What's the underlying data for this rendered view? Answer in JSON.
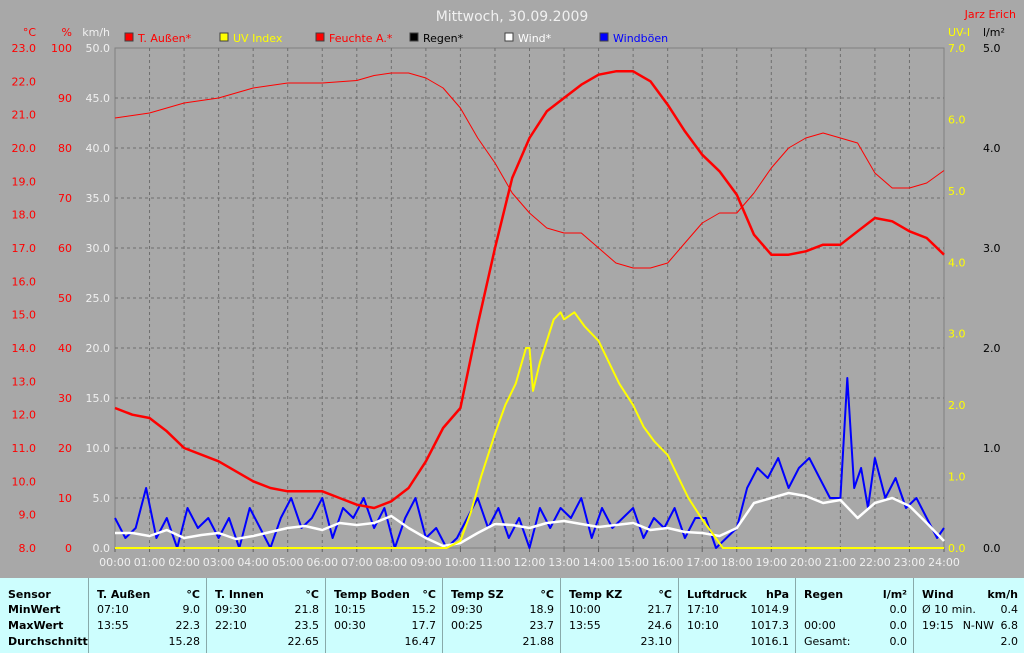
{
  "chart_data": {
    "type": "line",
    "title": "Mittwoch, 30.09.2009",
    "corner_label": "Jarz Erich",
    "x_ticks": [
      "00:00",
      "01:00",
      "02:00",
      "03:00",
      "04:00",
      "05:00",
      "06:00",
      "07:00",
      "08:00",
      "09:00",
      "10:00",
      "11:00",
      "12:00",
      "13:00",
      "14:00",
      "15:00",
      "16:00",
      "17:00",
      "18:00",
      "19:00",
      "20:00",
      "21:00",
      "22:00",
      "23:00",
      "24:00"
    ],
    "xlim": [
      0,
      24
    ],
    "axes": {
      "temp": {
        "unit": "°C",
        "range": [
          8.0,
          23.0
        ],
        "ticks": [
          "23.0",
          "22.0",
          "21.0",
          "20.0",
          "19.0",
          "18.0",
          "17.0",
          "16.0",
          "15.0",
          "14.0",
          "13.0",
          "12.0",
          "11.0",
          "10.0",
          "9.0",
          "8.0"
        ]
      },
      "hum": {
        "unit": "%",
        "range": [
          0,
          100
        ],
        "ticks": [
          "100",
          "90",
          "80",
          "70",
          "60",
          "50",
          "40",
          "30",
          "20",
          "10",
          "0"
        ]
      },
      "wind": {
        "unit": "km/h",
        "range": [
          0,
          50
        ],
        "ticks": [
          "50.0",
          "45.0",
          "40.0",
          "35.0",
          "30.0",
          "25.0",
          "20.0",
          "15.0",
          "10.0",
          "5.0",
          "0.0"
        ]
      },
      "uv": {
        "unit": "UV-I",
        "range": [
          0,
          7
        ],
        "ticks": [
          "7.0",
          "6.0",
          "5.0",
          "4.0",
          "3.0",
          "2.0",
          "1.0",
          "0.0"
        ]
      },
      "rain": {
        "unit": "l/m²",
        "range": [
          0,
          5
        ],
        "ticks": [
          "5.0",
          "4.0",
          "3.0",
          "2.0",
          "1.0",
          "0.0"
        ]
      }
    },
    "legend": [
      {
        "name": "T. Außen*",
        "color": "#ff0000"
      },
      {
        "name": "UV Index",
        "color": "#ffff00"
      },
      {
        "name": "Feuchte A.*",
        "color": "#ff0000"
      },
      {
        "name": "Regen*",
        "color": "#000000"
      },
      {
        "name": "Wind*",
        "color": "#ffffff"
      },
      {
        "name": "Windböen",
        "color": "#0000ff"
      }
    ],
    "series": [
      {
        "name": "T. Außen*",
        "axis": "temp",
        "color": "#ff0000",
        "x": [
          0,
          0.5,
          1,
          1.5,
          2,
          3,
          4,
          4.5,
          5,
          6,
          6.5,
          7,
          7.5,
          8,
          8.5,
          9,
          9.5,
          10,
          10.5,
          11,
          11.5,
          12,
          12.5,
          13,
          13.5,
          14,
          14.5,
          15,
          15.5,
          16,
          16.5,
          17,
          17.5,
          18,
          18.5,
          19,
          19.5,
          20,
          20.5,
          21,
          21.5,
          22,
          22.5,
          23,
          23.5,
          24
        ],
        "y": [
          12.2,
          12.0,
          11.9,
          11.5,
          11.0,
          10.6,
          10.0,
          9.8,
          9.7,
          9.7,
          9.5,
          9.3,
          9.2,
          9.4,
          9.8,
          10.6,
          11.6,
          12.2,
          14.7,
          17.0,
          19.1,
          20.3,
          21.1,
          21.5,
          21.9,
          22.2,
          22.3,
          22.3,
          22.0,
          21.3,
          20.5,
          19.8,
          19.3,
          18.6,
          17.4,
          16.8,
          16.8,
          16.9,
          17.1,
          17.1,
          17.5,
          17.9,
          17.8,
          17.5,
          17.3,
          16.8
        ]
      },
      {
        "name": "Feuchte A.*",
        "axis": "hum",
        "color": "#ff0000",
        "x": [
          0,
          0.5,
          1,
          1.5,
          2,
          3,
          4,
          5,
          6,
          7,
          7.5,
          8,
          8.5,
          9,
          9.5,
          10,
          10.5,
          11,
          11.5,
          12,
          12.5,
          13,
          13.5,
          14,
          14.5,
          15,
          15.5,
          16,
          16.5,
          17,
          17.5,
          18,
          18.5,
          19,
          19.5,
          20,
          20.5,
          21,
          21.5,
          22,
          22.5,
          23,
          23.5,
          24
        ],
        "y": [
          86,
          86.5,
          87,
          88,
          89,
          90,
          92,
          93,
          93,
          93.5,
          94.5,
          95,
          95,
          94,
          92,
          88,
          82,
          77,
          71,
          67,
          64,
          63,
          63,
          60,
          57,
          56,
          56,
          57,
          61,
          65,
          67,
          67,
          71,
          76,
          80,
          82,
          83,
          82,
          81,
          75,
          72,
          72,
          73,
          75.5
        ]
      },
      {
        "name": "UV Index",
        "axis": "uv",
        "color": "#ffff00",
        "x": [
          0,
          9.6,
          10.0,
          10.3,
          10.6,
          11.0,
          11.3,
          11.6,
          11.9,
          12.0,
          12.1,
          12.3,
          12.5,
          12.7,
          12.9,
          13.0,
          13.3,
          13.6,
          14.0,
          14.3,
          14.6,
          15.0,
          15.3,
          15.6,
          16.0,
          16.3,
          16.6,
          17.0,
          17.3,
          17.6,
          24
        ],
        "y": [
          0,
          0,
          0.1,
          0.5,
          1.0,
          1.6,
          2.0,
          2.3,
          2.8,
          2.8,
          2.2,
          2.6,
          2.9,
          3.2,
          3.3,
          3.2,
          3.3,
          3.1,
          2.9,
          2.6,
          2.3,
          2.0,
          1.7,
          1.5,
          1.3,
          1.0,
          0.7,
          0.4,
          0.2,
          0,
          0
        ]
      },
      {
        "name": "Wind*",
        "axis": "wind",
        "color": "#ffffff",
        "x": [
          0,
          0.5,
          1,
          1.5,
          2,
          2.5,
          3,
          3.5,
          4,
          4.5,
          5,
          5.5,
          6,
          6.5,
          7,
          7.5,
          8,
          8.5,
          9,
          9.5,
          10,
          10.5,
          11,
          11.5,
          12,
          12.5,
          13,
          13.5,
          14,
          14.5,
          15,
          15.5,
          16,
          16.5,
          17,
          17.5,
          18,
          18.5,
          19,
          19.5,
          20,
          20.5,
          21,
          21.5,
          22,
          22.5,
          23,
          23.5,
          24
        ],
        "y": [
          1.5,
          1.5,
          1.2,
          1.8,
          1.0,
          1.3,
          1.5,
          0.9,
          1.2,
          1.6,
          2.0,
          2.2,
          1.8,
          2.5,
          2.3,
          2.5,
          3.2,
          2.0,
          1.0,
          0.2,
          0.5,
          1.5,
          2.4,
          2.3,
          2.0,
          2.5,
          2.7,
          2.4,
          2.1,
          2.3,
          2.5,
          1.8,
          2.0,
          1.6,
          1.5,
          1.2,
          2.0,
          4.5,
          5.0,
          5.5,
          5.2,
          4.5,
          4.8,
          3.0,
          4.5,
          5.0,
          4.2,
          2.5,
          0.7
        ]
      },
      {
        "name": "Windböen",
        "axis": "wind",
        "color": "#0000ff",
        "x": [
          0,
          0.3,
          0.6,
          0.9,
          1.2,
          1.5,
          1.8,
          2.1,
          2.4,
          2.7,
          3.0,
          3.3,
          3.6,
          3.9,
          4.2,
          4.5,
          4.8,
          5.1,
          5.4,
          5.7,
          6.0,
          6.3,
          6.6,
          6.9,
          7.2,
          7.5,
          7.8,
          8.1,
          8.4,
          8.7,
          9.0,
          9.3,
          9.6,
          9.9,
          10.2,
          10.5,
          10.8,
          11.1,
          11.4,
          11.7,
          12.0,
          12.3,
          12.6,
          12.9,
          13.2,
          13.5,
          13.8,
          14.1,
          14.4,
          14.7,
          15.0,
          15.3,
          15.6,
          15.9,
          16.2,
          16.5,
          16.8,
          17.1,
          17.4,
          17.7,
          18.0,
          18.3,
          18.6,
          18.9,
          19.2,
          19.5,
          19.8,
          20.1,
          20.4,
          20.7,
          21.0,
          21.2,
          21.4,
          21.6,
          21.8,
          22.0,
          22.3,
          22.6,
          22.9,
          23.2,
          23.5,
          23.8,
          24
        ],
        "y": [
          3,
          1,
          2,
          6,
          1,
          3,
          0,
          4,
          2,
          3,
          1,
          3,
          0,
          4,
          2,
          0,
          3,
          5,
          2,
          3,
          5,
          1,
          4,
          3,
          5,
          2,
          4,
          0,
          3,
          5,
          1,
          2,
          0,
          1,
          3,
          5,
          2,
          4,
          1,
          3,
          0,
          4,
          2,
          4,
          3,
          5,
          1,
          4,
          2,
          3,
          4,
          1,
          3,
          2,
          4,
          1,
          3,
          3,
          0,
          1,
          2,
          6,
          8,
          7,
          9,
          6,
          8,
          9,
          7,
          5,
          5,
          17,
          6,
          8,
          4,
          9,
          5,
          7,
          4,
          5,
          3,
          1,
          2
        ]
      }
    ]
  },
  "stats": {
    "columns": [
      {
        "header": "Sensor",
        "unit": "",
        "rows": [
          {
            "time": "MinWert",
            "value": ""
          },
          {
            "time": "MaxWert",
            "value": ""
          },
          {
            "time": "Durchschnitt",
            "value": ""
          }
        ]
      },
      {
        "header": "T. Außen",
        "unit": "°C",
        "rows": [
          {
            "time": "07:10",
            "value": "9.0"
          },
          {
            "time": "13:55",
            "value": "22.3"
          },
          {
            "time": "",
            "value": "15.28"
          }
        ]
      },
      {
        "header": "T. Innen",
        "unit": "°C",
        "rows": [
          {
            "time": "09:30",
            "value": "21.8"
          },
          {
            "time": "22:10",
            "value": "23.5"
          },
          {
            "time": "",
            "value": "22.65"
          }
        ]
      },
      {
        "header": "Temp Boden",
        "unit": "°C",
        "rows": [
          {
            "time": "10:15",
            "value": "15.2"
          },
          {
            "time": "00:30",
            "value": "17.7"
          },
          {
            "time": "",
            "value": "16.47"
          }
        ]
      },
      {
        "header": "Temp SZ",
        "unit": "°C",
        "rows": [
          {
            "time": "09:30",
            "value": "18.9"
          },
          {
            "time": "00:25",
            "value": "23.7"
          },
          {
            "time": "",
            "value": "21.88"
          }
        ]
      },
      {
        "header": "Temp KZ",
        "unit": "°C",
        "rows": [
          {
            "time": "10:00",
            "value": "21.7"
          },
          {
            "time": "13:55",
            "value": "24.6"
          },
          {
            "time": "",
            "value": "23.10"
          }
        ]
      },
      {
        "header": "Luftdruck",
        "unit": "hPa",
        "rows": [
          {
            "time": "17:10",
            "value": "1014.9"
          },
          {
            "time": "10:10",
            "value": "1017.3"
          },
          {
            "time": "",
            "value": "1016.1"
          }
        ]
      },
      {
        "header": "Regen",
        "unit": "l/m²",
        "rows": [
          {
            "time": "",
            "value": "0.0"
          },
          {
            "time": "00:00",
            "value": "0.0"
          },
          {
            "time": "Gesamt:",
            "value": "0.0"
          }
        ]
      },
      {
        "header": "Wind",
        "unit": "km/h",
        "rows": [
          {
            "time": "Ø 10 min.",
            "value": "0.4"
          },
          {
            "time": "19:15",
            "mid": "N-NW",
            "value": "6.8"
          },
          {
            "time": "",
            "value": "2.0"
          }
        ]
      }
    ]
  }
}
